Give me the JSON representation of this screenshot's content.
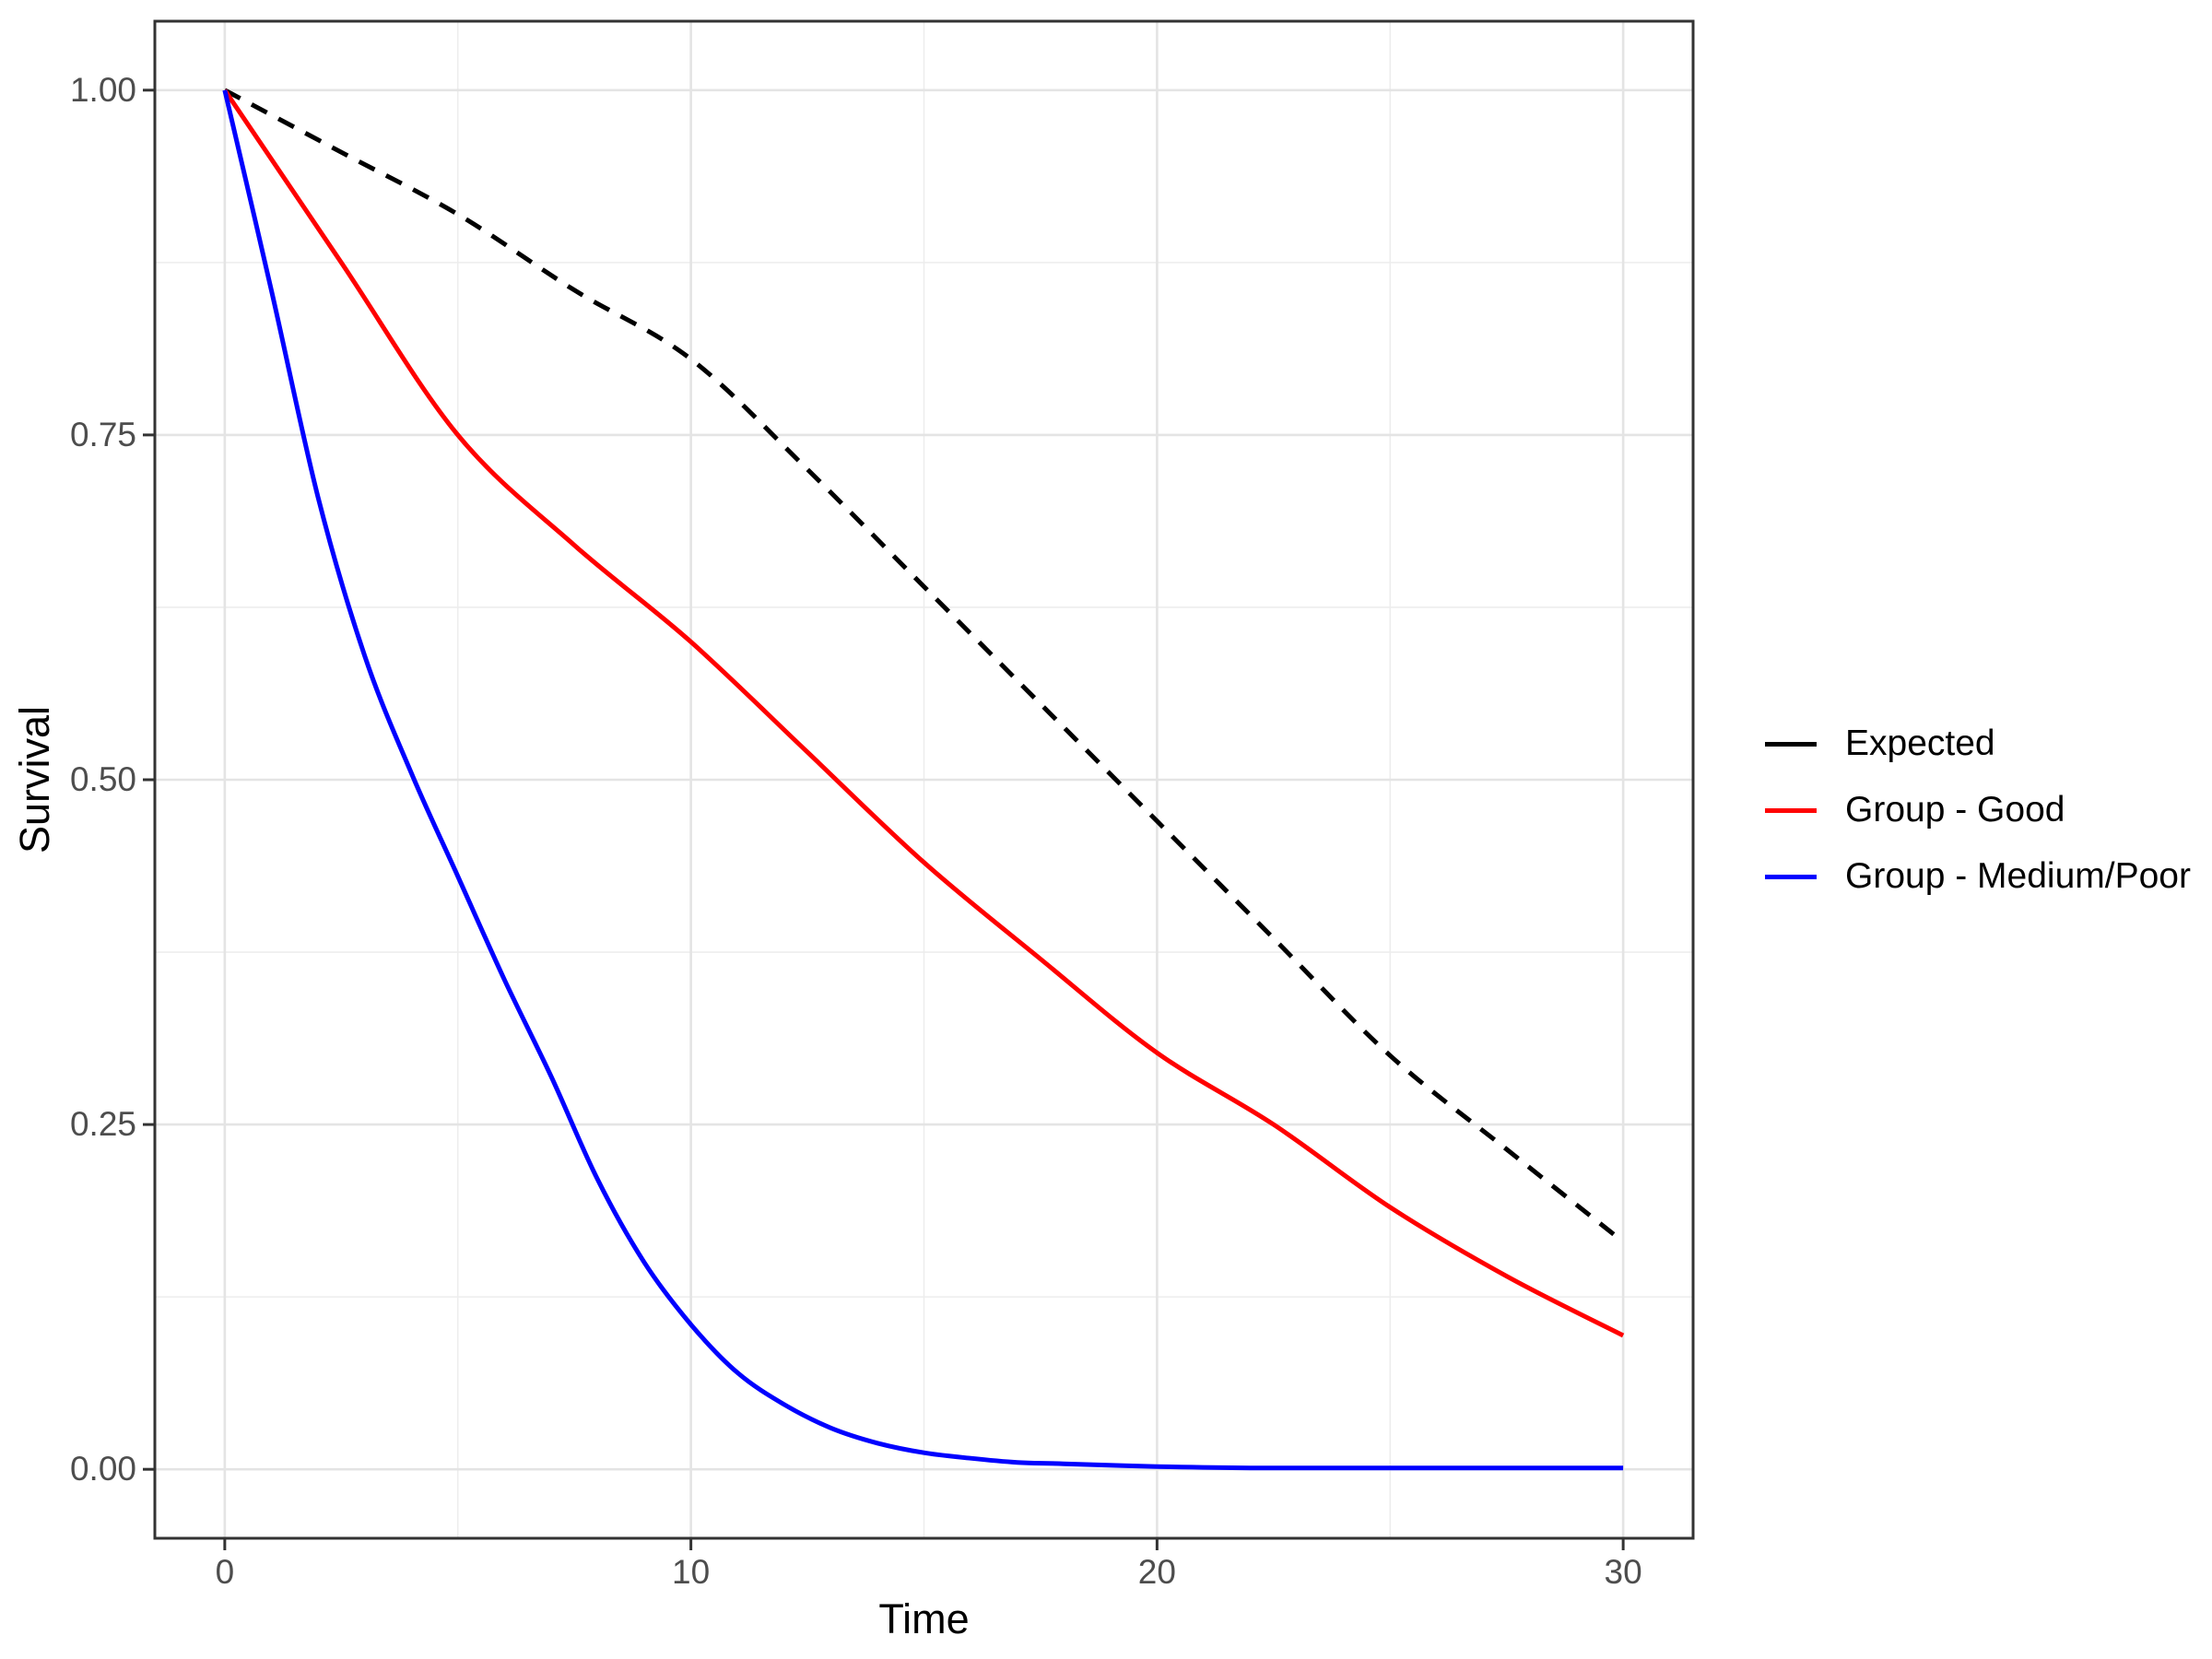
{
  "figure": {
    "background_color": "#FFFFFF",
    "panel_border_color": "#333333",
    "major_gridline_color": "#E4E4E4",
    "minor_gridline_color": "#EDEDED",
    "tick_mark_color": "#333333",
    "tick_label_color": "#4D4D4D"
  },
  "chart_data": {
    "type": "line",
    "title": "",
    "xlabel": "Time",
    "ylabel": "Survival",
    "xlim": [
      0,
      30
    ],
    "ylim": [
      0,
      1
    ],
    "x_range_shown": [
      -1.5,
      31.5
    ],
    "y_range_shown": [
      -0.05,
      1.05
    ],
    "grid": "major and minor, light gray on white panel",
    "x_ticks": [
      0,
      10,
      20,
      30
    ],
    "x_tick_labels": [
      "0",
      "10",
      "20",
      "30"
    ],
    "x_minor_gridlines": [
      5,
      15,
      25
    ],
    "y_ticks": [
      0,
      0.25,
      0.5,
      0.75,
      1
    ],
    "y_tick_labels": [
      "0.00",
      "0.25",
      "0.50",
      "0.75",
      "1.00"
    ],
    "y_minor_gridlines": [
      0.125,
      0.375,
      0.625,
      0.875
    ],
    "legend_position": "right-middle",
    "series": [
      {
        "name": "Expected",
        "color": "#000000",
        "linetype": "dashed",
        "x": [
          0,
          2.5,
          5,
          7.5,
          10,
          12.5,
          15,
          17.5,
          20,
          22.5,
          25,
          27.5,
          30
        ],
        "y": [
          1.0,
          0.955,
          0.91,
          0.855,
          0.805,
          0.725,
          0.64,
          0.555,
          0.47,
          0.385,
          0.3,
          0.232,
          0.165
        ]
      },
      {
        "name": "Group - Good",
        "color": "#FF0000",
        "linetype": "solid",
        "x": [
          0,
          2.5,
          5,
          7.5,
          10,
          12.5,
          15,
          17.5,
          20,
          22.5,
          25,
          27.5,
          30
        ],
        "y": [
          1.0,
          0.875,
          0.75,
          0.67,
          0.6,
          0.52,
          0.44,
          0.37,
          0.302,
          0.25,
          0.19,
          0.14,
          0.097
        ]
      },
      {
        "name": "Group - Medium/Poor",
        "color": "#0000FF",
        "linetype": "solid",
        "x": [
          0,
          1,
          2,
          3,
          4,
          5,
          6,
          7,
          8,
          9,
          10,
          11,
          12,
          13,
          14,
          15,
          16,
          17,
          18,
          20,
          22,
          25,
          30
        ],
        "y": [
          1.0,
          0.855,
          0.705,
          0.59,
          0.505,
          0.43,
          0.355,
          0.285,
          0.21,
          0.15,
          0.105,
          0.07,
          0.047,
          0.03,
          0.019,
          0.012,
          0.008,
          0.005,
          0.004,
          0.002,
          0.001,
          0.001,
          0.001
        ]
      }
    ]
  }
}
